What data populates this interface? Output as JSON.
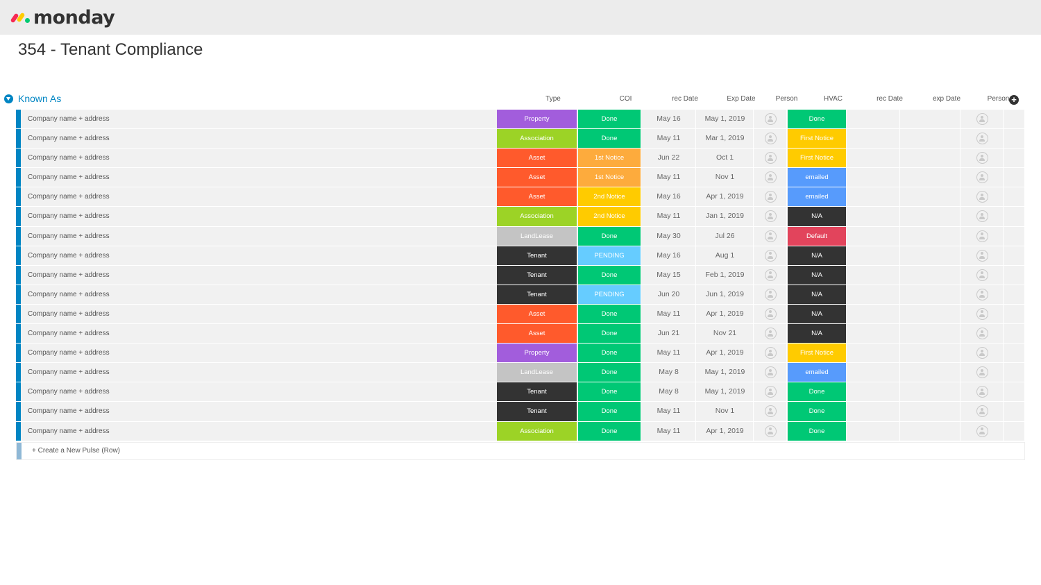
{
  "app": {
    "logo_text": "monday"
  },
  "board": {
    "title": "354 - Tenant Compliance"
  },
  "group": {
    "title": "Known As",
    "color": "#0085c3",
    "columns": [
      "Type",
      "COI",
      "rec Date",
      "Exp Date",
      "Person",
      "HVAC",
      "rec Date",
      "exp Date",
      "Person"
    ],
    "add_column_icon": "+",
    "create_label": "+ Create a New Pulse (Row)"
  },
  "status_colors": {
    "Property": "#a25ddc",
    "Association": "#9cd326",
    "Asset": "#ff5a2c",
    "LandLease": "#c4c4c4",
    "Tenant": "#333333",
    "Done": "#00c875",
    "1st Notice": "#fdab3d",
    "2nd Notice": "#ffcb00",
    "PENDING": "#66ccff",
    "First Notice": "#ffcb00",
    "emailed": "#579bfc",
    "N/A": "#333333",
    "Default": "#e2445c"
  },
  "rows": [
    {
      "name": "Company name + address",
      "type": "Property",
      "coi": "Done",
      "rec_date": "May 16",
      "exp_date": "May 1, 2019",
      "hvac": "Done"
    },
    {
      "name": "Company name + address",
      "type": "Association",
      "coi": "Done",
      "rec_date": "May 11",
      "exp_date": "Mar 1, 2019",
      "hvac": "First Notice"
    },
    {
      "name": "Company name + address",
      "type": "Asset",
      "coi": "1st Notice",
      "rec_date": "Jun 22",
      "exp_date": "Oct 1",
      "hvac": "First Notice"
    },
    {
      "name": "Company name + address",
      "type": "Asset",
      "coi": "1st Notice",
      "rec_date": "May 11",
      "exp_date": "Nov 1",
      "hvac": "emailed"
    },
    {
      "name": "Company name + address",
      "type": "Asset",
      "coi": "2nd Notice",
      "rec_date": "May 16",
      "exp_date": "Apr 1, 2019",
      "hvac": "emailed"
    },
    {
      "name": "Company name + address",
      "type": "Association",
      "coi": "2nd Notice",
      "rec_date": "May 11",
      "exp_date": "Jan 1, 2019",
      "hvac": "N/A"
    },
    {
      "name": "Company name + address",
      "type": "LandLease",
      "coi": "Done",
      "rec_date": "May 30",
      "exp_date": "Jul 26",
      "hvac": "Default"
    },
    {
      "name": "Company name + address",
      "type": "Tenant",
      "coi": "PENDING",
      "rec_date": "May 16",
      "exp_date": "Aug 1",
      "hvac": "N/A"
    },
    {
      "name": "Company name + address",
      "type": "Tenant",
      "coi": "Done",
      "rec_date": "May 15",
      "exp_date": "Feb 1, 2019",
      "hvac": "N/A"
    },
    {
      "name": "Company name + address",
      "type": "Tenant",
      "coi": "PENDING",
      "rec_date": "Jun 20",
      "exp_date": "Jun 1, 2019",
      "hvac": "N/A"
    },
    {
      "name": "Company name + address",
      "type": "Asset",
      "coi": "Done",
      "rec_date": "May 11",
      "exp_date": "Apr 1, 2019",
      "hvac": "N/A"
    },
    {
      "name": "Company name + address",
      "type": "Asset",
      "coi": "Done",
      "rec_date": "Jun 21",
      "exp_date": "Nov 21",
      "hvac": "N/A"
    },
    {
      "name": "Company name + address",
      "type": "Property",
      "coi": "Done",
      "rec_date": "May 11",
      "exp_date": "Apr 1, 2019",
      "hvac": "First Notice"
    },
    {
      "name": "Company name + address",
      "type": "LandLease",
      "coi": "Done",
      "rec_date": "May 8",
      "exp_date": "May 1, 2019",
      "hvac": "emailed"
    },
    {
      "name": "Company name + address",
      "type": "Tenant",
      "coi": "Done",
      "rec_date": "May 8",
      "exp_date": "May 1, 2019",
      "hvac": "Done"
    },
    {
      "name": "Company name + address",
      "type": "Tenant",
      "coi": "Done",
      "rec_date": "May 11",
      "exp_date": "Nov 1",
      "hvac": "Done"
    },
    {
      "name": "Company name + address",
      "type": "Association",
      "coi": "Done",
      "rec_date": "May 11",
      "exp_date": "Apr 1, 2019",
      "hvac": "Done"
    }
  ]
}
